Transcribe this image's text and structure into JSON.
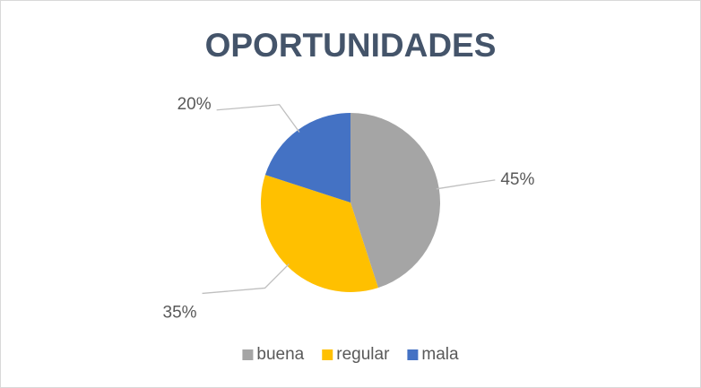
{
  "chart_data": {
    "type": "pie",
    "title": "OPORTUNIDADES",
    "categories": [
      "buena",
      "regular",
      "mala"
    ],
    "values": [
      45,
      35,
      20
    ],
    "value_labels": [
      "45%",
      "35%",
      "20%"
    ],
    "colors": [
      "#a5a5a5",
      "#ffc000",
      "#4472c4"
    ],
    "legend": "bottom"
  }
}
